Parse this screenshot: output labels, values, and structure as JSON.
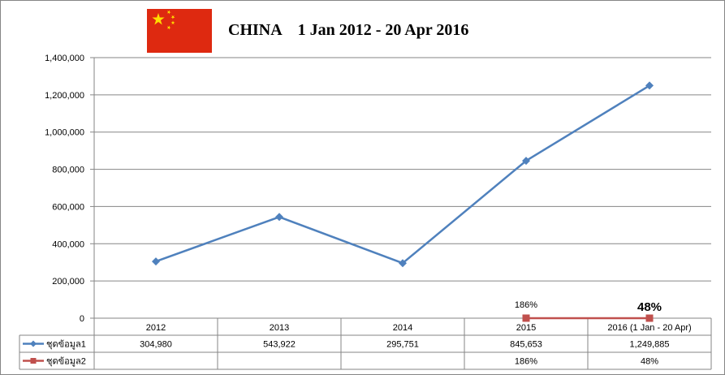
{
  "chart_data": {
    "type": "line",
    "title": "CHINA    1 Jan 2012 - 20 Apr 2016",
    "categories": [
      "2012",
      "2013",
      "2014",
      "2015",
      "2016 (1 Jan - 20 Apr)"
    ],
    "ylim": [
      0,
      1400000
    ],
    "yticks": [
      0,
      200000,
      400000,
      600000,
      800000,
      1000000,
      1200000,
      1400000
    ],
    "ytick_labels": [
      "0",
      "200,000",
      "400,000",
      "600,000",
      "800,000",
      "1,000,000",
      "1,200,000",
      "1,400,000"
    ],
    "grid": true,
    "series": [
      {
        "name": "ชุดข้อมูล1",
        "color": "#4f81bd",
        "values": [
          304980,
          543922,
          295751,
          845653,
          1249885
        ],
        "table_values": [
          "304,980",
          "543,922",
          "295,751",
          "845,653",
          "1,249,885"
        ]
      },
      {
        "name": "ชุดข้อมูล2",
        "color": "#c0504d",
        "values": [
          null,
          null,
          null,
          186,
          48
        ],
        "table_values": [
          "",
          "",
          "",
          "186%",
          "48%"
        ]
      }
    ],
    "data_labels": [
      {
        "series": 1,
        "index": 3,
        "text": "186%"
      },
      {
        "series": 1,
        "index": 4,
        "text": "48%"
      }
    ]
  },
  "flag": {
    "country": "China",
    "icon": "china-flag-icon",
    "field_color": "#de2910",
    "star_color": "#ffde00"
  }
}
